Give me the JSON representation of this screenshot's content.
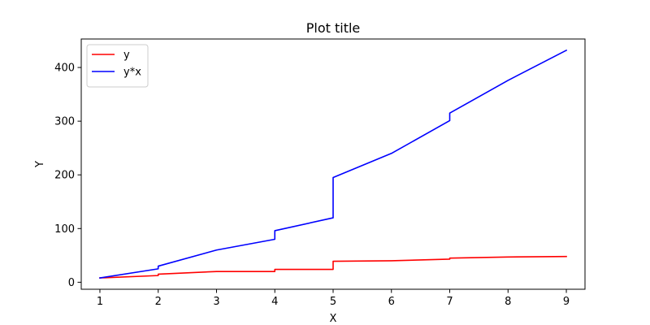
{
  "chart_data": {
    "type": "line",
    "title": "Plot title",
    "xlabel": "X",
    "ylabel": "Y",
    "xlim": [
      0.68,
      9.32
    ],
    "ylim": [
      -13.05,
      453.05
    ],
    "xticks": [
      1,
      2,
      3,
      4,
      5,
      6,
      7,
      8,
      9
    ],
    "yticks": [
      0,
      100,
      200,
      300,
      400
    ],
    "grid": false,
    "legend_position": "upper-left",
    "series": [
      {
        "name": "y",
        "color": "#ff0000",
        "points": [
          [
            1,
            8
          ],
          [
            2,
            12.5
          ],
          [
            2,
            15
          ],
          [
            3,
            20
          ],
          [
            4,
            20
          ],
          [
            4,
            24
          ],
          [
            5,
            24
          ],
          [
            5,
            39
          ],
          [
            6,
            40
          ],
          [
            7,
            43
          ],
          [
            7,
            45
          ],
          [
            8,
            47
          ],
          [
            9,
            48
          ]
        ]
      },
      {
        "name": "y*x",
        "color": "#0000ff",
        "points": [
          [
            1,
            8
          ],
          [
            2,
            25
          ],
          [
            2,
            30
          ],
          [
            3,
            60
          ],
          [
            4,
            80
          ],
          [
            4,
            96
          ],
          [
            5,
            120
          ],
          [
            5,
            195
          ],
          [
            6,
            240
          ],
          [
            7,
            301
          ],
          [
            7,
            315
          ],
          [
            8,
            376
          ],
          [
            9,
            432
          ]
        ]
      }
    ]
  }
}
